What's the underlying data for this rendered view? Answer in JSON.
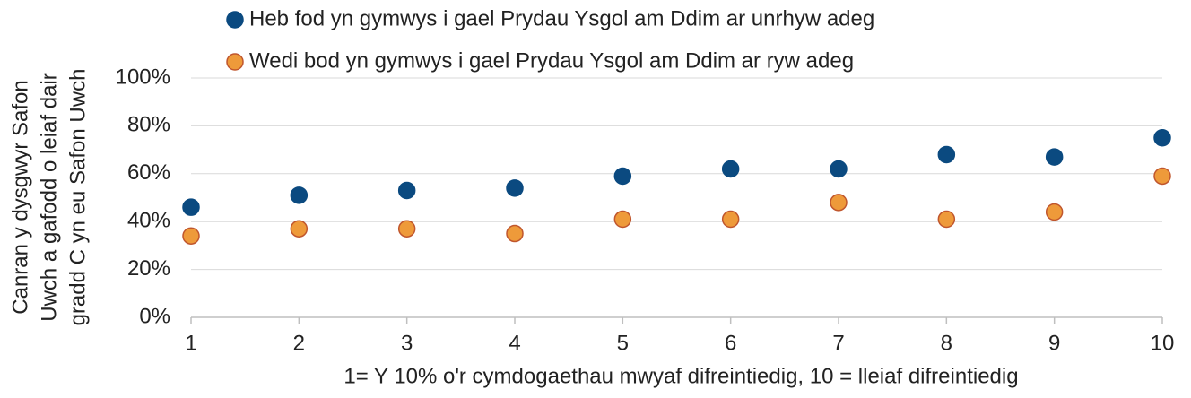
{
  "chart_data": {
    "type": "scatter",
    "x_label": "1= Y 10% o'r cymdogaethau mwyaf difreintiedig, 10 = lleiaf difreintiedig",
    "y_label": [
      "Canran y dysgwyr Safon",
      "Uwch a gafodd o leiaf dair",
      "gradd C yn eu Safon Uwch"
    ],
    "x": [
      1,
      2,
      3,
      4,
      5,
      6,
      7,
      8,
      9,
      10
    ],
    "series": [
      {
        "name": "Heb fod yn gymwys i gael Prydau Ysgol am Ddim ar unrhyw adeg",
        "color": "#0b4a80",
        "values": [
          46,
          51,
          53,
          54,
          59,
          62,
          62,
          68,
          67,
          75
        ]
      },
      {
        "name": "Wedi bod yn gymwys i gael Prydau Ysgol am Ddim ar ryw adeg",
        "color": "#ee9a3a",
        "values": [
          34,
          37,
          37,
          35,
          41,
          41,
          48,
          41,
          44,
          59
        ]
      }
    ],
    "xlim": [
      1,
      10
    ],
    "xticks": [
      1,
      2,
      3,
      4,
      5,
      6,
      7,
      8,
      9,
      10
    ],
    "ylim": [
      0,
      100
    ],
    "yticks": [
      {
        "value": 0,
        "label": "0%"
      },
      {
        "value": 20,
        "label": "20%"
      },
      {
        "value": 40,
        "label": "40%"
      },
      {
        "value": 60,
        "label": "60%"
      },
      {
        "value": 80,
        "label": "80%"
      },
      {
        "value": 100,
        "label": "100%"
      }
    ],
    "grid": true,
    "legend": "top"
  }
}
